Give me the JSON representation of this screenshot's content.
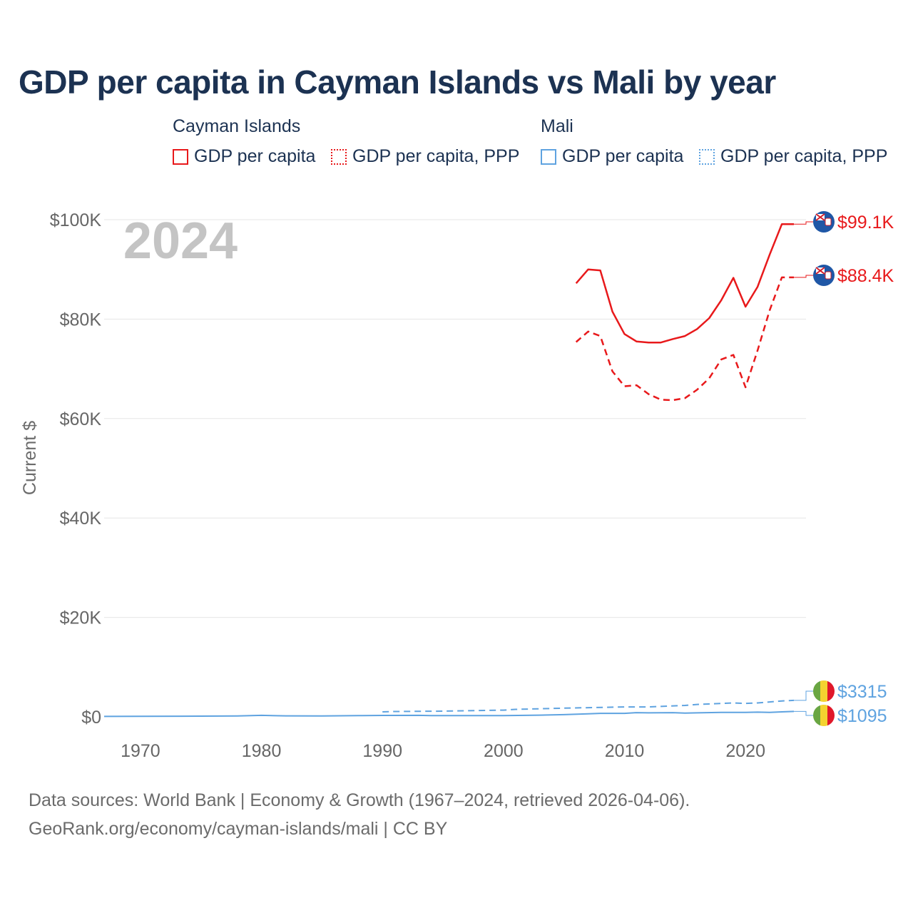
{
  "title": "GDP per capita in Cayman Islands vs Mali by year",
  "legend": {
    "groups": [
      {
        "name": "Cayman Islands",
        "items": [
          "GDP per capita",
          "GDP per capita, PPP"
        ]
      },
      {
        "name": "Mali",
        "items": [
          "GDP per capita",
          "GDP per capita, PPP"
        ]
      }
    ]
  },
  "colors": {
    "cayman": "#e8191b",
    "mali": "#5fa3e0",
    "grid": "#e6e6e6",
    "axis_text": "#666666",
    "year_watermark": "#c4c4c4"
  },
  "footer": {
    "line1": "Data sources: World Bank | Economy & Growth (1967–2024, retrieved 2026-04-06).",
    "line2": "GeoRank.org/economy/cayman-islands/mali | CC BY"
  },
  "chart_data": {
    "type": "line",
    "year_label": "2024",
    "ylabel": "Current $",
    "xlim": [
      1967,
      2025
    ],
    "ylim": [
      0,
      100000
    ],
    "x_ticks": [
      1970,
      1980,
      1990,
      2000,
      2010,
      2020
    ],
    "y_ticks": [
      0,
      20000,
      40000,
      60000,
      80000,
      100000
    ],
    "y_tick_labels": [
      "$0",
      "$20K",
      "$40K",
      "$60K",
      "$80K",
      "$100K"
    ],
    "series": [
      {
        "name": "Cayman Islands GDP per capita",
        "country": "Cayman Islands",
        "style": "solid",
        "end_label": "$99.1K",
        "points": [
          [
            2006,
            87200
          ],
          [
            2007,
            90000
          ],
          [
            2008,
            89800
          ],
          [
            2009,
            81500
          ],
          [
            2010,
            77000
          ],
          [
            2011,
            75500
          ],
          [
            2012,
            75300
          ],
          [
            2013,
            75300
          ],
          [
            2014,
            76000
          ],
          [
            2015,
            76600
          ],
          [
            2016,
            78000
          ],
          [
            2017,
            80200
          ],
          [
            2018,
            83800
          ],
          [
            2019,
            88300
          ],
          [
            2020,
            82500
          ],
          [
            2021,
            86500
          ],
          [
            2022,
            93000
          ],
          [
            2023,
            99100
          ],
          [
            2024,
            99100
          ]
        ]
      },
      {
        "name": "Cayman Islands GDP per capita, PPP",
        "country": "Cayman Islands",
        "style": "dashed",
        "end_label": "$88.4K",
        "points": [
          [
            2006,
            75400
          ],
          [
            2007,
            77500
          ],
          [
            2008,
            76600
          ],
          [
            2009,
            69500
          ],
          [
            2010,
            66500
          ],
          [
            2011,
            66700
          ],
          [
            2012,
            64900
          ],
          [
            2013,
            63800
          ],
          [
            2014,
            63700
          ],
          [
            2015,
            64100
          ],
          [
            2016,
            65800
          ],
          [
            2017,
            68100
          ],
          [
            2018,
            71900
          ],
          [
            2019,
            72800
          ],
          [
            2020,
            66300
          ],
          [
            2021,
            73700
          ],
          [
            2022,
            81800
          ],
          [
            2023,
            88400
          ],
          [
            2024,
            88400
          ]
        ]
      },
      {
        "name": "Mali GDP per capita, PPP",
        "country": "Mali",
        "style": "dashed",
        "end_label": "$3315",
        "points": [
          [
            1990,
            1000
          ],
          [
            1991,
            1080
          ],
          [
            1995,
            1150
          ],
          [
            2000,
            1350
          ],
          [
            2001,
            1500
          ],
          [
            2005,
            1750
          ],
          [
            2010,
            2000
          ],
          [
            2012,
            2000
          ],
          [
            2013,
            2100
          ],
          [
            2015,
            2300
          ],
          [
            2016,
            2500
          ],
          [
            2019,
            2800
          ],
          [
            2020,
            2700
          ],
          [
            2021,
            2800
          ],
          [
            2022,
            3000
          ],
          [
            2023,
            3200
          ],
          [
            2024,
            3315
          ]
        ]
      },
      {
        "name": "Mali GDP per capita",
        "country": "Mali",
        "style": "solid",
        "end_label": "$1095",
        "points": [
          [
            1967,
            90
          ],
          [
            1970,
            100
          ],
          [
            1975,
            150
          ],
          [
            1978,
            180
          ],
          [
            1980,
            300
          ],
          [
            1982,
            200
          ],
          [
            1985,
            190
          ],
          [
            1988,
            250
          ],
          [
            1990,
            280
          ],
          [
            1993,
            300
          ],
          [
            1994,
            250
          ],
          [
            1997,
            260
          ],
          [
            2000,
            250
          ],
          [
            2003,
            350
          ],
          [
            2005,
            450
          ],
          [
            2007,
            600
          ],
          [
            2008,
            700
          ],
          [
            2010,
            700
          ],
          [
            2011,
            850
          ],
          [
            2012,
            800
          ],
          [
            2014,
            850
          ],
          [
            2015,
            750
          ],
          [
            2016,
            800
          ],
          [
            2018,
            900
          ],
          [
            2020,
            900
          ],
          [
            2021,
            950
          ],
          [
            2022,
            900
          ],
          [
            2023,
            1000
          ],
          [
            2024,
            1095
          ]
        ]
      }
    ]
  }
}
